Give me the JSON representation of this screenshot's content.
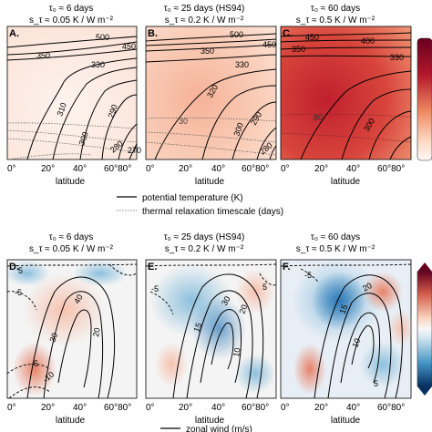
{
  "figure": {
    "rows": [
      {
        "label_key": "potential temperature (K)",
        "label_key2": "thermal relaxation timescale (days)",
        "panels": [
          {
            "letter": "A.",
            "title1": "τ₀ ≈ 6 days",
            "title2": "s_τ ≈ 0.05 K / W m⁻²"
          },
          {
            "letter": "B.",
            "title1": "τ₀ ≈ 25 days (HS94)",
            "title2": "s_τ ≈ 0.2 K / W m⁻²"
          },
          {
            "letter": "C.",
            "title1": "τ₀ ≈ 60 days",
            "title2": "s_τ ≈ 0.5 K / W m⁻²"
          }
        ]
      },
      {
        "label_key": "zonal wind (m/s)",
        "panels": [
          {
            "letter": "D.",
            "title1": "τ₀ ≈ 6 days",
            "title2": "s_τ ≈ 0.05 K / W m⁻²"
          },
          {
            "letter": "E.",
            "title1": "τ₀ ≈ 25 days (HS94)",
            "title2": "s_τ ≈ 0.2 K / W m⁻²"
          },
          {
            "letter": "F.",
            "title1": "τ₀ ≈ 60 days",
            "title2": "s_τ ≈ 0.5 K / W m⁻²"
          }
        ]
      }
    ],
    "xlabel": "latitude",
    "xticks": [
      "0°",
      "20°",
      "40°",
      "60°80°"
    ]
  },
  "colors": {
    "warm_dark": "#b2182b",
    "warm_mid": "#ef8a62",
    "warm_light": "#fddbc7",
    "cool_dark": "#2166ac",
    "cool_mid": "#67a9cf",
    "cool_light": "#d1e5f0",
    "neutral": "#f7f7f7"
  },
  "chart_data": [
    {
      "type": "heatmap",
      "panel": "A.",
      "title": "τ₀ ≈ 6 days / s_τ ≈ 0.05 K / W m⁻²",
      "xlabel": "latitude",
      "contour_labels": [
        "500",
        "450",
        "350",
        "330",
        "310",
        "300",
        "290",
        "280",
        "270"
      ]
    },
    {
      "type": "heatmap",
      "panel": "B.",
      "title": "τ₀ ≈ 25 days (HS94) / s_τ ≈ 0.2 K / W m⁻²",
      "xlabel": "latitude",
      "contour_labels": [
        "500",
        "450",
        "350",
        "330",
        "320",
        "300",
        "290",
        "280",
        "30"
      ]
    },
    {
      "type": "heatmap",
      "panel": "C.",
      "title": "τ₀ ≈ 60 days / s_τ ≈ 0.5 K / W m⁻²",
      "xlabel": "latitude",
      "contour_labels": [
        "450",
        "400",
        "350",
        "330",
        "300",
        "80"
      ]
    },
    {
      "type": "heatmap",
      "panel": "D.",
      "title": "τ₀ ≈ 6 days / s_τ ≈ 0.05 K / W m⁻²",
      "xlabel": "latitude",
      "contour_labels": [
        "40",
        "30",
        "20",
        "-5",
        "-10",
        "5"
      ]
    },
    {
      "type": "heatmap",
      "panel": "E.",
      "title": "τ₀ ≈ 25 days (HS94) / s_τ ≈ 0.2 K / W m⁻²",
      "xlabel": "latitude",
      "contour_labels": [
        "30",
        "20",
        "15",
        "10",
        "-5",
        "5"
      ]
    },
    {
      "type": "heatmap",
      "panel": "F.",
      "title": "τ₀ ≈ 60 days / s_τ ≈ 0.5 K / W m⁻²",
      "xlabel": "latitude",
      "contour_labels": [
        "20",
        "15",
        "10",
        "5",
        "-5"
      ]
    }
  ]
}
